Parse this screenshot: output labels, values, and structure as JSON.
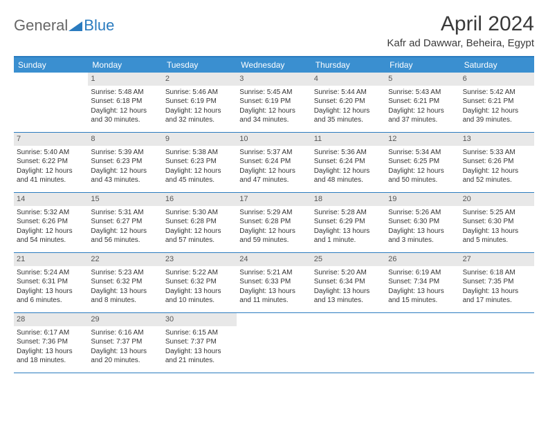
{
  "logo": {
    "text1": "General",
    "text2": "Blue"
  },
  "title": "April 2024",
  "location": "Kafr ad Dawwar, Beheira, Egypt",
  "colors": {
    "header_bg": "#3a8fd0",
    "border": "#2a7bbf",
    "daynum_bg": "#e8e8e8",
    "text": "#333333",
    "bg": "#ffffff"
  },
  "dayNames": [
    "Sunday",
    "Monday",
    "Tuesday",
    "Wednesday",
    "Thursday",
    "Friday",
    "Saturday"
  ],
  "weeks": [
    [
      null,
      {
        "n": "1",
        "sr": "Sunrise: 5:48 AM",
        "ss": "Sunset: 6:18 PM",
        "d1": "Daylight: 12 hours",
        "d2": "and 30 minutes."
      },
      {
        "n": "2",
        "sr": "Sunrise: 5:46 AM",
        "ss": "Sunset: 6:19 PM",
        "d1": "Daylight: 12 hours",
        "d2": "and 32 minutes."
      },
      {
        "n": "3",
        "sr": "Sunrise: 5:45 AM",
        "ss": "Sunset: 6:19 PM",
        "d1": "Daylight: 12 hours",
        "d2": "and 34 minutes."
      },
      {
        "n": "4",
        "sr": "Sunrise: 5:44 AM",
        "ss": "Sunset: 6:20 PM",
        "d1": "Daylight: 12 hours",
        "d2": "and 35 minutes."
      },
      {
        "n": "5",
        "sr": "Sunrise: 5:43 AM",
        "ss": "Sunset: 6:21 PM",
        "d1": "Daylight: 12 hours",
        "d2": "and 37 minutes."
      },
      {
        "n": "6",
        "sr": "Sunrise: 5:42 AM",
        "ss": "Sunset: 6:21 PM",
        "d1": "Daylight: 12 hours",
        "d2": "and 39 minutes."
      }
    ],
    [
      {
        "n": "7",
        "sr": "Sunrise: 5:40 AM",
        "ss": "Sunset: 6:22 PM",
        "d1": "Daylight: 12 hours",
        "d2": "and 41 minutes."
      },
      {
        "n": "8",
        "sr": "Sunrise: 5:39 AM",
        "ss": "Sunset: 6:23 PM",
        "d1": "Daylight: 12 hours",
        "d2": "and 43 minutes."
      },
      {
        "n": "9",
        "sr": "Sunrise: 5:38 AM",
        "ss": "Sunset: 6:23 PM",
        "d1": "Daylight: 12 hours",
        "d2": "and 45 minutes."
      },
      {
        "n": "10",
        "sr": "Sunrise: 5:37 AM",
        "ss": "Sunset: 6:24 PM",
        "d1": "Daylight: 12 hours",
        "d2": "and 47 minutes."
      },
      {
        "n": "11",
        "sr": "Sunrise: 5:36 AM",
        "ss": "Sunset: 6:24 PM",
        "d1": "Daylight: 12 hours",
        "d2": "and 48 minutes."
      },
      {
        "n": "12",
        "sr": "Sunrise: 5:34 AM",
        "ss": "Sunset: 6:25 PM",
        "d1": "Daylight: 12 hours",
        "d2": "and 50 minutes."
      },
      {
        "n": "13",
        "sr": "Sunrise: 5:33 AM",
        "ss": "Sunset: 6:26 PM",
        "d1": "Daylight: 12 hours",
        "d2": "and 52 minutes."
      }
    ],
    [
      {
        "n": "14",
        "sr": "Sunrise: 5:32 AM",
        "ss": "Sunset: 6:26 PM",
        "d1": "Daylight: 12 hours",
        "d2": "and 54 minutes."
      },
      {
        "n": "15",
        "sr": "Sunrise: 5:31 AM",
        "ss": "Sunset: 6:27 PM",
        "d1": "Daylight: 12 hours",
        "d2": "and 56 minutes."
      },
      {
        "n": "16",
        "sr": "Sunrise: 5:30 AM",
        "ss": "Sunset: 6:28 PM",
        "d1": "Daylight: 12 hours",
        "d2": "and 57 minutes."
      },
      {
        "n": "17",
        "sr": "Sunrise: 5:29 AM",
        "ss": "Sunset: 6:28 PM",
        "d1": "Daylight: 12 hours",
        "d2": "and 59 minutes."
      },
      {
        "n": "18",
        "sr": "Sunrise: 5:28 AM",
        "ss": "Sunset: 6:29 PM",
        "d1": "Daylight: 13 hours",
        "d2": "and 1 minute."
      },
      {
        "n": "19",
        "sr": "Sunrise: 5:26 AM",
        "ss": "Sunset: 6:30 PM",
        "d1": "Daylight: 13 hours",
        "d2": "and 3 minutes."
      },
      {
        "n": "20",
        "sr": "Sunrise: 5:25 AM",
        "ss": "Sunset: 6:30 PM",
        "d1": "Daylight: 13 hours",
        "d2": "and 5 minutes."
      }
    ],
    [
      {
        "n": "21",
        "sr": "Sunrise: 5:24 AM",
        "ss": "Sunset: 6:31 PM",
        "d1": "Daylight: 13 hours",
        "d2": "and 6 minutes."
      },
      {
        "n": "22",
        "sr": "Sunrise: 5:23 AM",
        "ss": "Sunset: 6:32 PM",
        "d1": "Daylight: 13 hours",
        "d2": "and 8 minutes."
      },
      {
        "n": "23",
        "sr": "Sunrise: 5:22 AM",
        "ss": "Sunset: 6:32 PM",
        "d1": "Daylight: 13 hours",
        "d2": "and 10 minutes."
      },
      {
        "n": "24",
        "sr": "Sunrise: 5:21 AM",
        "ss": "Sunset: 6:33 PM",
        "d1": "Daylight: 13 hours",
        "d2": "and 11 minutes."
      },
      {
        "n": "25",
        "sr": "Sunrise: 5:20 AM",
        "ss": "Sunset: 6:34 PM",
        "d1": "Daylight: 13 hours",
        "d2": "and 13 minutes."
      },
      {
        "n": "26",
        "sr": "Sunrise: 6:19 AM",
        "ss": "Sunset: 7:34 PM",
        "d1": "Daylight: 13 hours",
        "d2": "and 15 minutes."
      },
      {
        "n": "27",
        "sr": "Sunrise: 6:18 AM",
        "ss": "Sunset: 7:35 PM",
        "d1": "Daylight: 13 hours",
        "d2": "and 17 minutes."
      }
    ],
    [
      {
        "n": "28",
        "sr": "Sunrise: 6:17 AM",
        "ss": "Sunset: 7:36 PM",
        "d1": "Daylight: 13 hours",
        "d2": "and 18 minutes."
      },
      {
        "n": "29",
        "sr": "Sunrise: 6:16 AM",
        "ss": "Sunset: 7:37 PM",
        "d1": "Daylight: 13 hours",
        "d2": "and 20 minutes."
      },
      {
        "n": "30",
        "sr": "Sunrise: 6:15 AM",
        "ss": "Sunset: 7:37 PM",
        "d1": "Daylight: 13 hours",
        "d2": "and 21 minutes."
      },
      null,
      null,
      null,
      null
    ]
  ]
}
